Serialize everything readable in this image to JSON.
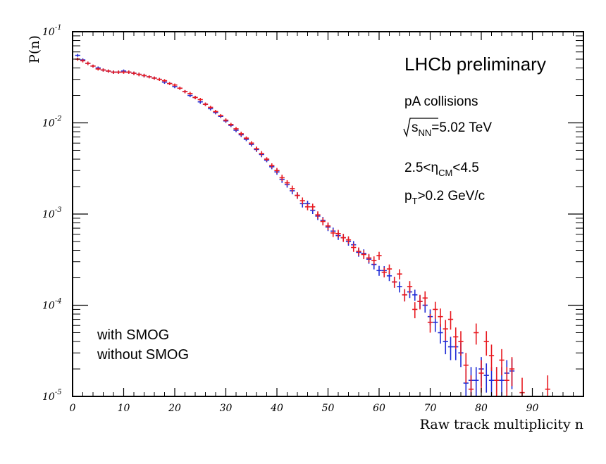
{
  "chart_data": {
    "type": "scatter",
    "title": "",
    "xlabel": "Raw track multiplicity n",
    "ylabel": "P(n)",
    "xlim": [
      0,
      100
    ],
    "ylim": [
      1e-05,
      0.1
    ],
    "yscale": "log",
    "x_ticks": [
      0,
      10,
      20,
      30,
      40,
      50,
      60,
      70,
      80,
      90
    ],
    "y_ticks": [
      {
        "value": 0.1,
        "base": "10",
        "exp": "-1"
      },
      {
        "value": 0.01,
        "base": "10",
        "exp": "-2"
      },
      {
        "value": 0.001,
        "base": "10",
        "exp": "-3"
      },
      {
        "value": 0.0001,
        "base": "10",
        "exp": "-4"
      },
      {
        "value": 1e-05,
        "base": "10",
        "exp": "-5"
      }
    ],
    "annotations": {
      "experiment": "LHCb preliminary",
      "collision": "pA collisions",
      "energy": {
        "sqrt": "s",
        "sub": "NN",
        "rest": "=5.02 TeV"
      },
      "eta_cut": {
        "pre": "2.5<η",
        "sub": "CM",
        "post": "<4.5"
      },
      "pt_cut": {
        "pre": "p",
        "sub": "T",
        "post": ">0.2 GeV/c"
      }
    },
    "legend": [
      {
        "name": "with SMOG",
        "color": "#e8191f"
      },
      {
        "name": "without SMOG",
        "color": "#1f2bd6"
      }
    ],
    "series": [
      {
        "name": "with SMOG",
        "color": "#e8191f",
        "x": [
          1,
          2,
          3,
          4,
          5,
          6,
          7,
          8,
          9,
          10,
          11,
          12,
          13,
          14,
          15,
          16,
          17,
          18,
          19,
          20,
          21,
          22,
          23,
          24,
          25,
          26,
          27,
          28,
          29,
          30,
          31,
          32,
          33,
          34,
          35,
          36,
          37,
          38,
          39,
          40,
          41,
          42,
          43,
          44,
          45,
          46,
          47,
          48,
          49,
          50,
          51,
          52,
          53,
          54,
          55,
          56,
          57,
          58,
          59,
          60,
          61,
          62,
          63,
          64,
          65,
          66,
          67,
          68,
          69,
          70,
          71,
          72,
          73,
          74,
          75,
          76,
          77,
          78,
          79,
          80,
          81,
          82,
          83,
          84,
          85,
          86,
          88,
          93
        ],
        "y": [
          0.05,
          0.048,
          0.045,
          0.042,
          0.039,
          0.038,
          0.037,
          0.036,
          0.036,
          0.036,
          0.036,
          0.035,
          0.034,
          0.033,
          0.032,
          0.031,
          0.03,
          0.029,
          0.027,
          0.026,
          0.024,
          0.022,
          0.021,
          0.019,
          0.018,
          0.016,
          0.0148,
          0.0133,
          0.012,
          0.0107,
          0.0096,
          0.0086,
          0.0076,
          0.0068,
          0.006,
          0.0052,
          0.0046,
          0.004,
          0.0034,
          0.003,
          0.0025,
          0.0022,
          0.0019,
          0.0016,
          0.0014,
          0.0012,
          0.0012,
          0.00098,
          0.00083,
          0.00074,
          0.00062,
          0.00061,
          0.00055,
          0.00052,
          0.00043,
          0.00039,
          0.00036,
          0.00033,
          0.00031,
          0.00035,
          0.00023,
          0.00025,
          0.00018,
          0.00022,
          0.00013,
          0.00016,
          9e-05,
          0.00011,
          0.00012,
          6.5e-05,
          9e-05,
          7.5e-05,
          5.5e-05,
          7e-05,
          4.5e-05,
          4e-05,
          2.2e-05,
          1.2e-05,
          5e-05,
          1.8e-05,
          4e-05,
          2.8e-05,
          1.5e-05,
          2.5e-05,
          1.5e-05,
          2e-05,
          1.1e-05,
          1.2e-05
        ],
        "yerr": [
          0.002,
          0.002,
          0.002,
          0.0015,
          0.0015,
          0.0015,
          0.0015,
          0.0015,
          0.0015,
          0.0015,
          0.0015,
          0.0015,
          0.0015,
          0.0015,
          0.0012,
          0.0012,
          0.0012,
          0.0012,
          0.001,
          0.001,
          0.001,
          0.0009,
          0.0009,
          0.0008,
          0.0008,
          0.0007,
          0.0006,
          0.0006,
          0.0005,
          0.0005,
          0.0004,
          0.0004,
          0.0004,
          0.0003,
          0.0003,
          0.0003,
          0.0003,
          0.0002,
          0.0002,
          0.0002,
          0.0002,
          0.00015,
          0.00015,
          0.00013,
          0.00012,
          0.0001,
          0.0001,
          9e-05,
          8e-05,
          7e-05,
          6e-05,
          6e-05,
          5.5e-05,
          5e-05,
          4.5e-05,
          4e-05,
          4e-05,
          3.5e-05,
          3.3e-05,
          3.5e-05,
          2.8e-05,
          3e-05,
          2.5e-05,
          2.8e-05,
          2e-05,
          2.4e-05,
          1.8e-05,
          2e-05,
          2.2e-05,
          1.5e-05,
          1.9e-05,
          1.7e-05,
          1.4e-05,
          1.6e-05,
          1.2e-05,
          1.2e-05,
          8e-06,
          5e-06,
          1.3e-05,
          7e-06,
          1.2e-05,
          9e-06,
          6e-06,
          8e-06,
          6e-06,
          7e-06,
          5e-06,
          5e-06
        ]
      },
      {
        "name": "without SMOG",
        "color": "#1f2bd6",
        "x": [
          1,
          2,
          3,
          4,
          5,
          6,
          7,
          8,
          9,
          10,
          11,
          12,
          13,
          14,
          15,
          16,
          17,
          18,
          19,
          20,
          21,
          22,
          23,
          24,
          25,
          26,
          27,
          28,
          29,
          30,
          31,
          32,
          33,
          34,
          35,
          36,
          37,
          38,
          39,
          40,
          41,
          42,
          43,
          44,
          45,
          46,
          47,
          48,
          49,
          50,
          51,
          52,
          53,
          54,
          55,
          56,
          57,
          58,
          59,
          60,
          61,
          62,
          63,
          64,
          65,
          66,
          67,
          68,
          69,
          70,
          71,
          72,
          73,
          74,
          75,
          76,
          77,
          78,
          79,
          80,
          81,
          82,
          83,
          84,
          85,
          86
        ],
        "y": [
          0.055,
          0.049,
          0.045,
          0.042,
          0.04,
          0.038,
          0.037,
          0.036,
          0.036,
          0.037,
          0.036,
          0.035,
          0.034,
          0.033,
          0.032,
          0.031,
          0.03,
          0.028,
          0.027,
          0.025,
          0.024,
          0.022,
          0.02,
          0.019,
          0.017,
          0.016,
          0.0143,
          0.013,
          0.0118,
          0.0105,
          0.0094,
          0.0083,
          0.0074,
          0.0066,
          0.0058,
          0.0051,
          0.0045,
          0.0039,
          0.0033,
          0.0029,
          0.0024,
          0.0021,
          0.0018,
          0.0016,
          0.0013,
          0.0013,
          0.0011,
          0.00095,
          0.00085,
          0.00072,
          0.00065,
          0.00058,
          0.00055,
          0.0005,
          0.00046,
          0.00038,
          0.00037,
          0.00032,
          0.00028,
          0.00024,
          0.00024,
          0.00021,
          0.00018,
          0.00016,
          0.00013,
          0.00014,
          0.00013,
          0.00011,
          0.0001,
          7.5e-05,
          6.5e-05,
          5e-05,
          4e-05,
          3.5e-05,
          3.5e-05,
          3e-05,
          1.4e-05,
          1.5e-05,
          1.5e-05,
          2e-05,
          1.7e-05,
          1.5e-05,
          1.5e-05,
          1.5e-05,
          1.8e-05,
          1.9e-05
        ],
        "yerr": [
          0.002,
          0.002,
          0.002,
          0.0015,
          0.0015,
          0.0015,
          0.0015,
          0.0015,
          0.0015,
          0.0015,
          0.0015,
          0.0015,
          0.0015,
          0.0015,
          0.0012,
          0.0012,
          0.0012,
          0.0012,
          0.001,
          0.001,
          0.001,
          0.0009,
          0.0009,
          0.0008,
          0.0008,
          0.0007,
          0.0006,
          0.0006,
          0.0005,
          0.0005,
          0.0004,
          0.0004,
          0.0004,
          0.0003,
          0.0003,
          0.0003,
          0.0003,
          0.0002,
          0.0002,
          0.0002,
          0.0002,
          0.00015,
          0.00015,
          0.00013,
          0.00012,
          0.0001,
          0.0001,
          9e-05,
          8e-05,
          7e-05,
          6e-05,
          6e-05,
          5.5e-05,
          5e-05,
          4.5e-05,
          4e-05,
          4e-05,
          3.5e-05,
          3.3e-05,
          3e-05,
          2.8e-05,
          2.6e-05,
          2.4e-05,
          2.2e-05,
          2e-05,
          2e-05,
          1.8e-05,
          1.8e-05,
          1.7e-05,
          1.5e-05,
          1.4e-05,
          1.2e-05,
          1.1e-05,
          1e-05,
          1e-05,
          9e-06,
          6e-06,
          6e-06,
          6e-06,
          7e-06,
          6e-06,
          6e-06,
          6e-06,
          6e-06,
          7e-06,
          7e-06
        ]
      }
    ]
  }
}
